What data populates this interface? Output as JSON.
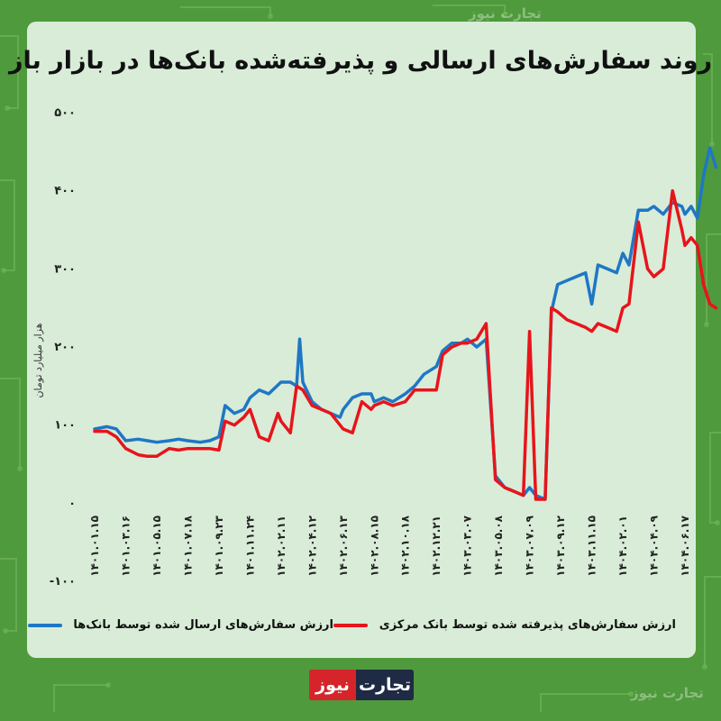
{
  "title": "روند سفارش‌های ارسالی و پذیرفته‌شده بانک‌ها در بازار باز",
  "logo": {
    "part1": "تجارت",
    "part2": "نیوز"
  },
  "watermark": "تجارت نیوز",
  "colors": {
    "sent": "#1f77c4",
    "accepted": "#e8141b",
    "background": "#4f9a3c",
    "card": "#d8ecd8"
  },
  "chart_data": {
    "type": "line",
    "ylabel": "هزار میلیارد تومان",
    "ylim": [
      -100,
      500
    ],
    "yticks": [
      -100,
      0,
      100,
      200,
      300,
      400,
      500
    ],
    "ytick_labels": [
      "-۱۰۰",
      "۰",
      "۱۰۰",
      "۲۰۰",
      "۳۰۰",
      "۴۰۰",
      "۵۰۰"
    ],
    "x_tick_labels": [
      "۱۴۰۱.۰۱.۱۵",
      "۱۴۰۱.۰۳.۱۶",
      "۱۴۰۱.۰۵.۱۵",
      "۱۴۰۱.۰۷.۱۸",
      "۱۴۰۱.۰۹.۲۳",
      "۱۴۰۱.۱۱.۲۴",
      "۱۴۰۲.۰۲.۱۱",
      "۱۴۰۲.۰۴.۱۲",
      "۱۴۰۲.۰۶.۱۳",
      "۱۴۰۲.۰۸.۱۵",
      "۱۴۰۲.۱۰.۱۸",
      "۱۴۰۲.۱۲.۲۱",
      "۱۴۰۳.۰۳.۰۷",
      "۱۴۰۳.۰۵.۰۸",
      "۱۴۰۳.۰۷.۰۹",
      "۱۴۰۳.۰۹.۱۲",
      "۱۴۰۳.۱۱.۱۵",
      "۱۴۰۴.۰۲.۰۱",
      "۱۴۰۴.۰۴.۰۹",
      "۱۴۰۴.۰۶.۱۷"
    ],
    "series": [
      {
        "name": "ارزش سفارش‌های ارسال شده توسط بانک‌ها",
        "color": "#1f77c4",
        "points": [
          [
            0,
            95
          ],
          [
            0.4,
            98
          ],
          [
            0.7,
            95
          ],
          [
            1,
            80
          ],
          [
            1.4,
            82
          ],
          [
            1.7,
            80
          ],
          [
            2,
            78
          ],
          [
            2.4,
            80
          ],
          [
            2.7,
            82
          ],
          [
            3,
            80
          ],
          [
            3.4,
            78
          ],
          [
            3.7,
            80
          ],
          [
            4,
            85
          ],
          [
            4.2,
            125
          ],
          [
            4.5,
            115
          ],
          [
            4.8,
            120
          ],
          [
            5,
            135
          ],
          [
            5.3,
            145
          ],
          [
            5.6,
            140
          ],
          [
            6,
            155
          ],
          [
            6.3,
            155
          ],
          [
            6.5,
            150
          ],
          [
            6.6,
            210
          ],
          [
            6.7,
            155
          ],
          [
            7,
            130
          ],
          [
            7.3,
            120
          ],
          [
            7.6,
            115
          ],
          [
            7.9,
            110
          ],
          [
            8,
            120
          ],
          [
            8.3,
            135
          ],
          [
            8.6,
            140
          ],
          [
            8.9,
            140
          ],
          [
            9,
            130
          ],
          [
            9.3,
            135
          ],
          [
            9.6,
            130
          ],
          [
            10,
            140
          ],
          [
            10.3,
            150
          ],
          [
            10.6,
            165
          ],
          [
            11,
            175
          ],
          [
            11.2,
            195
          ],
          [
            11.5,
            205
          ],
          [
            11.8,
            205
          ],
          [
            12,
            210
          ],
          [
            12.3,
            200
          ],
          [
            12.6,
            210
          ],
          [
            12.9,
            35
          ],
          [
            13.2,
            20
          ],
          [
            13.5,
            15
          ],
          [
            13.8,
            10
          ],
          [
            14,
            20
          ],
          [
            14.2,
            10
          ],
          [
            14.5,
            5
          ],
          [
            14.7,
            245
          ],
          [
            14.9,
            280
          ],
          [
            15.2,
            285
          ],
          [
            15.5,
            290
          ],
          [
            15.8,
            295
          ],
          [
            16,
            255
          ],
          [
            16.2,
            305
          ],
          [
            16.5,
            300
          ],
          [
            16.8,
            295
          ],
          [
            17,
            320
          ],
          [
            17.2,
            305
          ],
          [
            17.5,
            375
          ],
          [
            17.8,
            375
          ],
          [
            18,
            380
          ],
          [
            18.3,
            370
          ],
          [
            18.6,
            385
          ],
          [
            18.9,
            380
          ],
          [
            19,
            370
          ],
          [
            19.2,
            380
          ],
          [
            19.4,
            365
          ],
          [
            19.6,
            420
          ],
          [
            19.8,
            455
          ],
          [
            20,
            430
          ]
        ]
      },
      {
        "name": "ارزش سفارش‌های پذیرفته شده توسط بانک مرکزی",
        "color": "#e8141b",
        "points": [
          [
            0,
            92
          ],
          [
            0.4,
            92
          ],
          [
            0.7,
            85
          ],
          [
            1,
            70
          ],
          [
            1.4,
            62
          ],
          [
            1.7,
            60
          ],
          [
            2,
            60
          ],
          [
            2.4,
            70
          ],
          [
            2.7,
            68
          ],
          [
            3,
            70
          ],
          [
            3.4,
            70
          ],
          [
            3.7,
            70
          ],
          [
            4,
            68
          ],
          [
            4.2,
            105
          ],
          [
            4.5,
            100
          ],
          [
            4.8,
            110
          ],
          [
            5,
            120
          ],
          [
            5.3,
            85
          ],
          [
            5.6,
            80
          ],
          [
            5.9,
            115
          ],
          [
            6,
            105
          ],
          [
            6.3,
            90
          ],
          [
            6.5,
            150
          ],
          [
            6.7,
            145
          ],
          [
            7,
            125
          ],
          [
            7.3,
            120
          ],
          [
            7.6,
            115
          ],
          [
            8,
            95
          ],
          [
            8.3,
            90
          ],
          [
            8.6,
            130
          ],
          [
            8.9,
            120
          ],
          [
            9,
            125
          ],
          [
            9.3,
            130
          ],
          [
            9.6,
            125
          ],
          [
            10,
            130
          ],
          [
            10.3,
            145
          ],
          [
            10.6,
            145
          ],
          [
            11,
            145
          ],
          [
            11.2,
            190
          ],
          [
            11.5,
            200
          ],
          [
            11.8,
            205
          ],
          [
            12,
            205
          ],
          [
            12.3,
            210
          ],
          [
            12.6,
            230
          ],
          [
            12.9,
            30
          ],
          [
            13.2,
            20
          ],
          [
            13.5,
            15
          ],
          [
            13.8,
            10
          ],
          [
            14,
            220
          ],
          [
            14.2,
            5
          ],
          [
            14.5,
            5
          ],
          [
            14.7,
            250
          ],
          [
            14.9,
            245
          ],
          [
            15.2,
            235
          ],
          [
            15.5,
            230
          ],
          [
            15.8,
            225
          ],
          [
            16,
            220
          ],
          [
            16.2,
            230
          ],
          [
            16.5,
            225
          ],
          [
            16.8,
            220
          ],
          [
            17,
            250
          ],
          [
            17.2,
            255
          ],
          [
            17.5,
            360
          ],
          [
            17.8,
            300
          ],
          [
            18,
            290
          ],
          [
            18.3,
            300
          ],
          [
            18.6,
            400
          ],
          [
            18.9,
            350
          ],
          [
            19,
            330
          ],
          [
            19.2,
            340
          ],
          [
            19.4,
            330
          ],
          [
            19.6,
            280
          ],
          [
            19.8,
            255
          ],
          [
            20,
            250
          ]
        ]
      }
    ]
  }
}
